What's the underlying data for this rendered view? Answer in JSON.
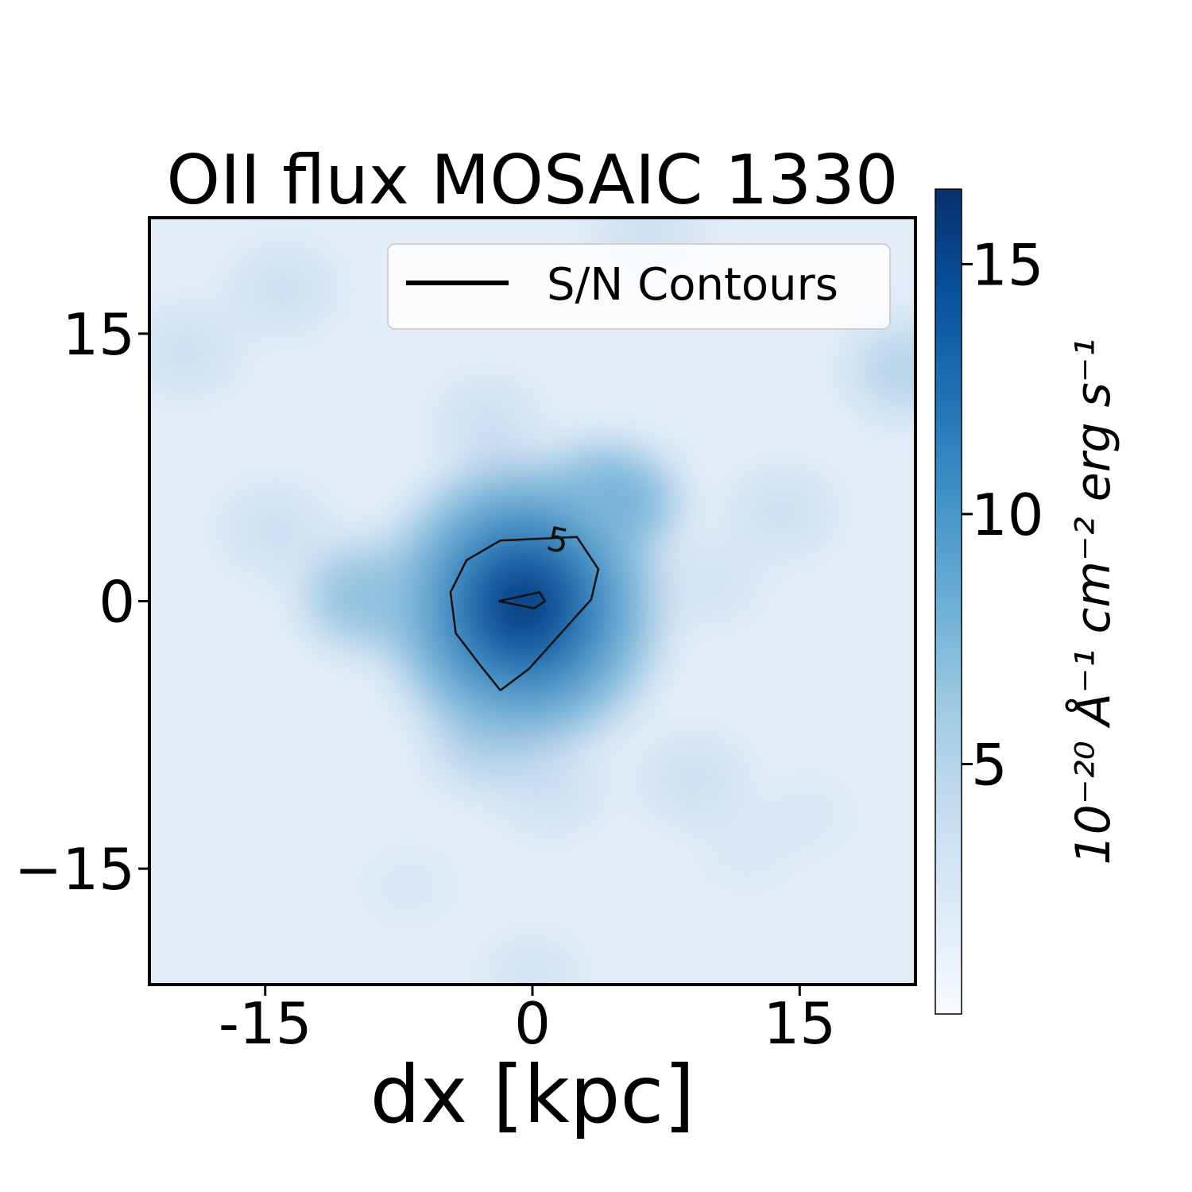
{
  "chart_data": {
    "type": "heatmap",
    "title": "OII flux MOSAIC 1330",
    "xlabel": "dx [kpc]",
    "ylabel": "",
    "xlim": [
      -21.5,
      21.5
    ],
    "ylim": [
      -21.5,
      21.5
    ],
    "xticks": [
      {
        "value": -15,
        "label": "-15"
      },
      {
        "value": 0,
        "label": "0"
      },
      {
        "value": 15,
        "label": "15"
      }
    ],
    "yticks": [
      {
        "value": 15,
        "label": "15"
      },
      {
        "value": 0,
        "label": "0"
      },
      {
        "value": -15,
        "label": "−15"
      }
    ],
    "colormap": "Blues",
    "colors": {
      "low": "#f7fbff",
      "high": "#08306b",
      "contour": "#111111"
    },
    "colorbar": {
      "min": 0,
      "max": 16.5,
      "ticks": [
        {
          "value": 5,
          "label": "5"
        },
        {
          "value": 10,
          "label": "10"
        },
        {
          "value": 15,
          "label": "15"
        }
      ],
      "label": "10⁻²⁰ Å⁻¹ cm⁻² erg s⁻¹"
    },
    "peak": {
      "x": -0.5,
      "y": 0.2,
      "value": 16
    },
    "legend": {
      "entries": [
        "S/N Contours"
      ],
      "position": "top-right"
    },
    "contours": [
      {
        "level": 5,
        "label": "5",
        "points": [
          [
            -1.8,
            -5.0
          ],
          [
            -0.2,
            -3.8
          ],
          [
            3.3,
            0.1
          ],
          [
            3.7,
            1.8
          ],
          [
            2.5,
            3.6
          ],
          [
            -1.8,
            3.4
          ],
          [
            -3.7,
            2.3
          ],
          [
            -4.6,
            0.5
          ],
          [
            -4.3,
            -1.8
          ],
          [
            -3.0,
            -3.5
          ],
          [
            -1.8,
            -5.0
          ]
        ]
      },
      {
        "level": 10,
        "points": [
          [
            -1.9,
            0.0
          ],
          [
            0.4,
            0.5
          ],
          [
            0.7,
            0.0
          ],
          [
            0.1,
            -0.4
          ],
          [
            -1.9,
            0.0
          ]
        ]
      }
    ],
    "extended_emission": [
      {
        "x": -9.0,
        "y": 0.3,
        "value": 5.5
      },
      {
        "x": -6.0,
        "y": 0.6,
        "value": 4.5
      },
      {
        "x": 4.0,
        "y": 5.5,
        "value": 6.5
      },
      {
        "x": -2.5,
        "y": -8.0,
        "value": 4.0
      },
      {
        "x": 1.0,
        "y": -10.5,
        "value": 3.0
      },
      {
        "x": -14.5,
        "y": 4.0,
        "value": 3.0
      },
      {
        "x": 14.0,
        "y": 5.0,
        "value": 3.0
      },
      {
        "x": 21.0,
        "y": 13.0,
        "value": 4.0
      },
      {
        "x": -19.5,
        "y": 14.0,
        "value": 3.0
      },
      {
        "x": -14.0,
        "y": 17.5,
        "value": 3.0
      },
      {
        "x": 6.5,
        "y": 20.5,
        "value": 3.0
      },
      {
        "x": 9.0,
        "y": -10.0,
        "value": 3.0
      },
      {
        "x": -2.5,
        "y": 10.0,
        "value": 3.0
      },
      {
        "x": 10.0,
        "y": 1.0,
        "value": 2.5
      },
      {
        "x": -7.0,
        "y": -16.0,
        "value": 2.0
      },
      {
        "x": 12.0,
        "y": -14.0,
        "value": 2.0
      },
      {
        "x": 0.0,
        "y": -21.0,
        "value": 2.5
      },
      {
        "x": 15.5,
        "y": -12.0,
        "value": 2.0
      }
    ]
  }
}
